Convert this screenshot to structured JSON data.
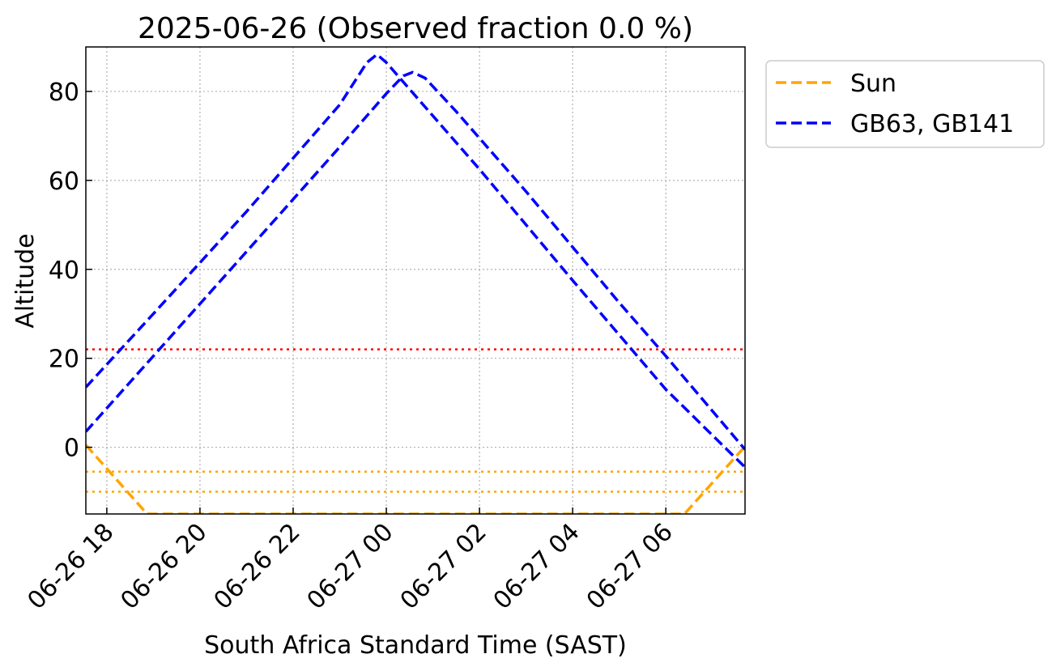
{
  "chart_data": {
    "type": "line",
    "title": "2025-06-26 (Observed fraction 0.0 %)",
    "xlabel": "South Africa Standard Time (SAST)",
    "ylabel": "Altitude",
    "xlim": [
      "2025-06-26 17:33",
      "2025-06-27 07:42"
    ],
    "ylim": [
      -15,
      90
    ],
    "grid": true,
    "legend_position": "outside-top-right",
    "x_ticks": [
      {
        "t": "2025-06-26 18:00",
        "label": "06-26 18"
      },
      {
        "t": "2025-06-26 20:00",
        "label": "06-26 20"
      },
      {
        "t": "2025-06-26 22:00",
        "label": "06-26 22"
      },
      {
        "t": "2025-06-27 00:00",
        "label": "06-27 00"
      },
      {
        "t": "2025-06-27 02:00",
        "label": "06-27 02"
      },
      {
        "t": "2025-06-27 04:00",
        "label": "06-27 04"
      },
      {
        "t": "2025-06-27 06:00",
        "label": "06-27 06"
      }
    ],
    "y_ticks": [
      0,
      20,
      40,
      60,
      80
    ],
    "series": [
      {
        "name": "Sun",
        "color": "#ffa500",
        "style": "dashed",
        "points": [
          {
            "t": "2025-06-26 17:33",
            "y": 0.5
          },
          {
            "t": "2025-06-26 18:52",
            "y": -15
          },
          {
            "t": "2025-06-27 06:24",
            "y": -15
          },
          {
            "t": "2025-06-27 07:42",
            "y": 0.2
          }
        ]
      },
      {
        "name": "GB63, GB141",
        "color": "#0000ff",
        "style": "dashed",
        "points": [
          {
            "t": "2025-06-26 17:33",
            "y": 13.5
          },
          {
            "t": "2025-06-26 19:00",
            "y": 30
          },
          {
            "t": "2025-06-26 21:00",
            "y": 53
          },
          {
            "t": "2025-06-26 23:00",
            "y": 77
          },
          {
            "t": "2025-06-26 23:35",
            "y": 86.5
          },
          {
            "t": "2025-06-26 23:48",
            "y": 88.3
          },
          {
            "t": "2025-06-27 00:00",
            "y": 86.5
          },
          {
            "t": "2025-06-27 00:30",
            "y": 80.5
          },
          {
            "t": "2025-06-27 02:00",
            "y": 62.5
          },
          {
            "t": "2025-06-27 04:00",
            "y": 37.5
          },
          {
            "t": "2025-06-27 06:00",
            "y": 13
          },
          {
            "t": "2025-06-27 07:42",
            "y": -4.5
          }
        ]
      },
      {
        "name": "",
        "color": "#0000ff",
        "style": "dashed",
        "points": [
          {
            "t": "2025-06-26 17:33",
            "y": 3.5
          },
          {
            "t": "2025-06-26 19:00",
            "y": 20.5
          },
          {
            "t": "2025-06-26 21:00",
            "y": 44
          },
          {
            "t": "2025-06-26 23:00",
            "y": 67.5
          },
          {
            "t": "2025-06-27 00:00",
            "y": 79.5
          },
          {
            "t": "2025-06-27 00:22",
            "y": 83.5
          },
          {
            "t": "2025-06-27 00:34",
            "y": 84.3
          },
          {
            "t": "2025-06-27 00:50",
            "y": 83
          },
          {
            "t": "2025-06-27 01:30",
            "y": 75.5
          },
          {
            "t": "2025-06-27 03:00",
            "y": 57.5
          },
          {
            "t": "2025-06-27 05:00",
            "y": 32.5
          },
          {
            "t": "2025-06-27 06:00",
            "y": 20.5
          },
          {
            "t": "2025-06-27 07:42",
            "y": -0.5
          }
        ]
      }
    ],
    "reference_lines": [
      {
        "y": 22,
        "color": "#ff0000",
        "style": "dotted"
      },
      {
        "y": -5.5,
        "color": "#ffa500",
        "style": "dotted"
      },
      {
        "y": -10,
        "color": "#ffa500",
        "style": "dotted"
      }
    ],
    "legend": [
      {
        "label": "Sun",
        "color": "#ffa500"
      },
      {
        "label": "GB63, GB141",
        "color": "#0000ff"
      }
    ]
  }
}
